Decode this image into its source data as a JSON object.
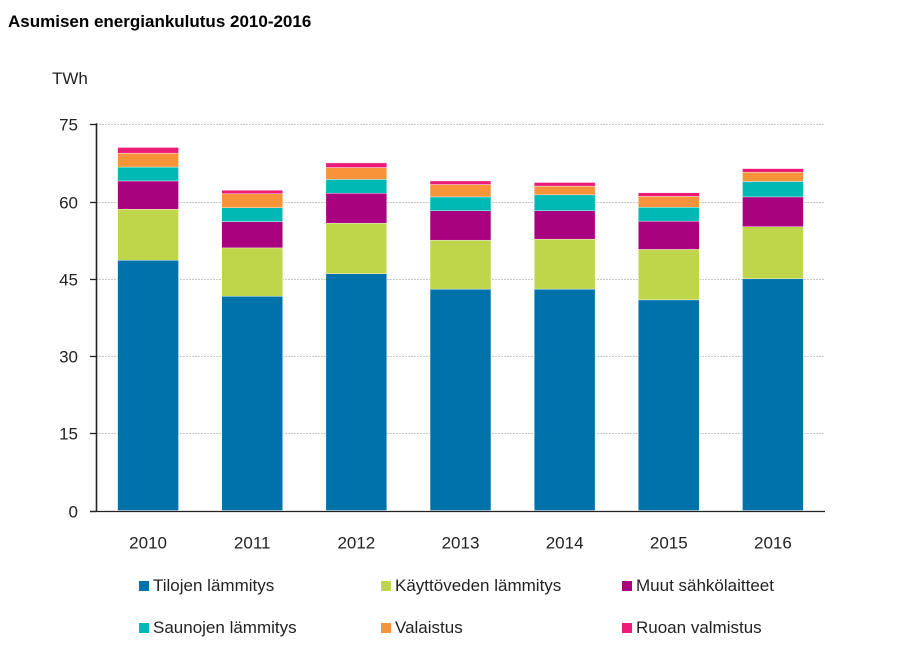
{
  "chart_data": {
    "type": "bar",
    "stacked": true,
    "title": "Asumisen energiankulutus 2010-2016",
    "ylabel": "TWh",
    "xlabel": "",
    "ylim": [
      0,
      75
    ],
    "yticks": [
      0,
      15,
      30,
      45,
      60,
      75
    ],
    "grid": true,
    "legend_position": "bottom",
    "categories": [
      "2010",
      "2011",
      "2012",
      "2013",
      "2014",
      "2015",
      "2016"
    ],
    "series": [
      {
        "name": "Tilojen lämmitys",
        "color": "#0072AA",
        "values": [
          48.6,
          41.6,
          46.0,
          43.0,
          43.0,
          40.9,
          45.0
        ]
      },
      {
        "name": "Käyttöveden lämmitys",
        "color": "#BFD64B",
        "values": [
          9.9,
          9.4,
          9.8,
          9.5,
          9.7,
          9.8,
          10.1
        ]
      },
      {
        "name": "Muut sähkölaitteet",
        "color": "#A8027E",
        "values": [
          5.5,
          5.1,
          5.8,
          5.7,
          5.5,
          5.5,
          5.8
        ]
      },
      {
        "name": "Saunojen lämmitys",
        "color": "#00B9B4",
        "values": [
          2.7,
          2.7,
          2.7,
          2.7,
          3.1,
          2.7,
          3.0
        ]
      },
      {
        "name": "Valaistus",
        "color": "#F7943A",
        "values": [
          2.7,
          2.7,
          2.3,
          2.4,
          1.7,
          2.1,
          1.8
        ]
      },
      {
        "name": "Ruoan valmistus",
        "color": "#EC1B78",
        "values": [
          1.1,
          0.7,
          0.9,
          0.7,
          0.7,
          0.7,
          0.7
        ]
      }
    ]
  }
}
